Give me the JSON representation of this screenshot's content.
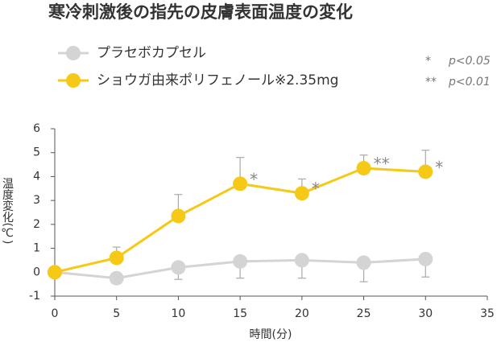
{
  "chart_data": {
    "type": "line",
    "title": "寒冷刺激後の指先の皮膚表面温度の変化",
    "x_label": "時間(分)",
    "y_label": "温度変化(℃)",
    "xlim": [
      0,
      35
    ],
    "xticks": [
      0,
      5,
      10,
      15,
      20,
      25,
      30,
      35
    ],
    "ylim": [
      -1,
      6
    ],
    "yticks": [
      -1,
      0,
      1,
      2,
      3,
      4,
      5,
      6
    ],
    "x": [
      0,
      5,
      10,
      15,
      20,
      25,
      30
    ],
    "series": [
      {
        "name": "プラセボカプセル",
        "color": "#d4d4d4",
        "values": [
          0,
          -0.25,
          0.2,
          0.45,
          0.5,
          0.4,
          0.55
        ],
        "errors": [
          null,
          null,
          0.5,
          0.7,
          0.75,
          0.8,
          0.75
        ],
        "error_direction": "down"
      },
      {
        "name": "ショウガ由来ポリフェノール※2.35mg",
        "color": "#f5c915",
        "values": [
          0,
          0.6,
          2.35,
          3.7,
          3.3,
          4.35,
          4.2
        ],
        "errors": [
          null,
          0.45,
          0.9,
          1.1,
          0.6,
          0.55,
          0.9
        ],
        "error_direction": "up"
      }
    ],
    "annotations": [
      {
        "x": 15,
        "label": "*"
      },
      {
        "x": 20,
        "label": "*"
      },
      {
        "x": 25,
        "label": "**"
      },
      {
        "x": 30,
        "label": "*"
      }
    ],
    "notes": [
      {
        "symbol": "*",
        "text": "p<0.05"
      },
      {
        "symbol": "**",
        "text": "p<0.01"
      }
    ]
  }
}
